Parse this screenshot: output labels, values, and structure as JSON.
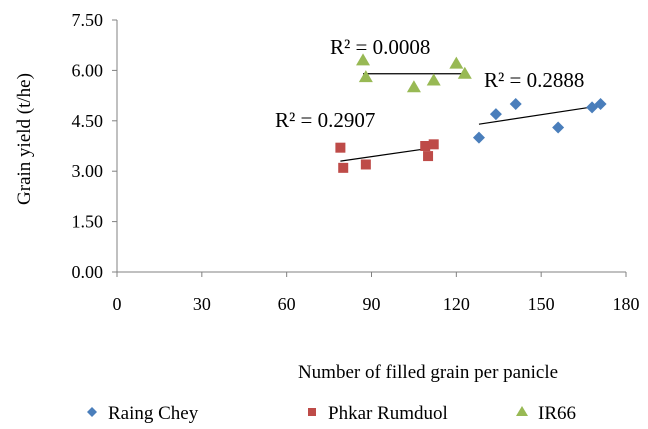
{
  "chart_data": {
    "type": "scatter",
    "xlabel": "Number of filled grain per panicle",
    "ylabel": "Grain yield (t/he)",
    "xlim": [
      0,
      180
    ],
    "ylim": [
      0,
      7.5
    ],
    "x_ticks": [
      "0",
      "30",
      "60",
      "90",
      "120",
      "150",
      "180"
    ],
    "y_ticks": [
      "0.00",
      "1.50",
      "3.00",
      "4.50",
      "6.00",
      "7.50"
    ],
    "legend_position": "bottom",
    "grid": false,
    "series": [
      {
        "name": "Raing Chey",
        "marker": "diamond",
        "color": "#4a7ebb",
        "points": [
          [
            128,
            4.0
          ],
          [
            134,
            4.7
          ],
          [
            141,
            5.0
          ],
          [
            156,
            4.3
          ],
          [
            168,
            4.9
          ],
          [
            171,
            5.0
          ]
        ],
        "trendline": {
          "x": [
            128,
            171
          ],
          "y": [
            4.4,
            4.95
          ]
        },
        "r2_label": "R² = 0.2888"
      },
      {
        "name": "Phkar Rumduol",
        "marker": "square",
        "color": "#be4b48",
        "points": [
          [
            79,
            3.7
          ],
          [
            80,
            3.1
          ],
          [
            88,
            3.2
          ],
          [
            109,
            3.75
          ],
          [
            110,
            3.45
          ],
          [
            112,
            3.8
          ]
        ],
        "trendline": {
          "x": [
            79,
            112
          ],
          "y": [
            3.3,
            3.7
          ]
        },
        "r2_label": "R² = 0.2907"
      },
      {
        "name": "IR66",
        "marker": "triangle",
        "color": "#98b954",
        "points": [
          [
            87,
            6.3
          ],
          [
            88,
            5.8
          ],
          [
            105,
            5.5
          ],
          [
            112,
            5.7
          ],
          [
            120,
            6.2
          ],
          [
            123,
            5.9
          ]
        ],
        "trendline": {
          "x": [
            87,
            123
          ],
          "y": [
            5.9,
            5.9
          ]
        },
        "r2_label": "R² = 0.0008"
      }
    ]
  }
}
